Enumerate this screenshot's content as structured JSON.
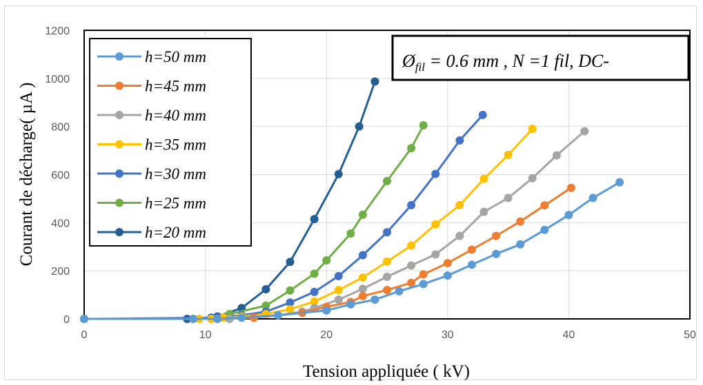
{
  "chart_data": {
    "type": "line",
    "title": "",
    "xlabel": "Tension appliquée ( kV)",
    "ylabel": "Courant de décharge( µA )",
    "xlim": [
      0,
      50
    ],
    "ylim": [
      0,
      1200
    ],
    "xticks": [
      "0",
      "10",
      "20",
      "30",
      "40",
      "50"
    ],
    "yticks": [
      "0",
      "200",
      "400",
      "600",
      "800",
      "1000",
      "1200"
    ],
    "grid": true,
    "legend_position": "top-left",
    "annotation": {
      "prefix": "Ø",
      "subscript": "fil",
      "rest": " = 0.6 mm , N =1 fil, DC-"
    },
    "series": [
      {
        "name": "h=50 mm",
        "color": "#5B9BD5",
        "x": [
          0,
          9,
          11,
          13,
          16,
          20,
          22,
          24,
          26,
          28,
          30,
          32,
          34,
          36,
          38,
          40,
          42,
          44.2
        ],
        "y": [
          0,
          0,
          0,
          5,
          15,
          35,
          60,
          80,
          115,
          145,
          180,
          225,
          270,
          310,
          370,
          432,
          503,
          568
        ]
      },
      {
        "name": "h=45 mm",
        "color": "#ED7D31",
        "x": [
          0,
          9,
          11,
          14,
          16,
          18,
          20,
          22,
          23,
          25,
          27,
          28,
          30,
          32,
          34,
          36,
          38,
          40.2
        ],
        "y": [
          0,
          0,
          0,
          5,
          15,
          25,
          50,
          70,
          95,
          120,
          150,
          185,
          232,
          288,
          345,
          405,
          472,
          545
        ]
      },
      {
        "name": "h=40 mm",
        "color": "#A5A5A5",
        "x": [
          0,
          9,
          12,
          14,
          16,
          18,
          19,
          21,
          23,
          25,
          27,
          29,
          31,
          33,
          35,
          37,
          39,
          41.3
        ],
        "y": [
          0,
          0,
          0,
          5,
          15,
          30,
          45,
          80,
          125,
          175,
          222,
          268,
          345,
          445,
          503,
          585,
          680,
          780
        ]
      },
      {
        "name": "h=35 mm",
        "color": "#FFC000",
        "x": [
          0,
          9.5,
          10.5,
          11.5,
          13,
          15,
          17,
          19,
          21,
          23,
          25,
          27,
          29,
          31,
          33,
          35,
          37
        ],
        "y": [
          0,
          0,
          0,
          5,
          10,
          20,
          40,
          72,
          120,
          172,
          238,
          305,
          393,
          473,
          582,
          682,
          790
        ]
      },
      {
        "name": "h=30 mm",
        "color": "#4472C4",
        "x": [
          0,
          11,
          13,
          15,
          17,
          19,
          21,
          23,
          25,
          27,
          29,
          31,
          32.9
        ],
        "y": [
          0,
          5,
          15,
          30,
          68,
          112,
          178,
          265,
          360,
          473,
          603,
          742,
          848
        ]
      },
      {
        "name": "h=25 mm",
        "color": "#70AD47",
        "x": [
          0,
          10.5,
          12,
          15,
          17,
          19,
          20,
          22,
          23,
          25,
          27,
          28
        ],
        "y": [
          0,
          0,
          20,
          55,
          118,
          188,
          243,
          355,
          433,
          573,
          710,
          805
        ]
      },
      {
        "name": "h=20 mm",
        "color": "#255E91",
        "x": [
          0,
          8.5,
          10.5,
          11,
          13,
          15,
          17,
          19,
          21,
          22.7,
          24
        ],
        "y": [
          0,
          0,
          5,
          10,
          45,
          123,
          237,
          415,
          602,
          800,
          987
        ]
      }
    ]
  }
}
